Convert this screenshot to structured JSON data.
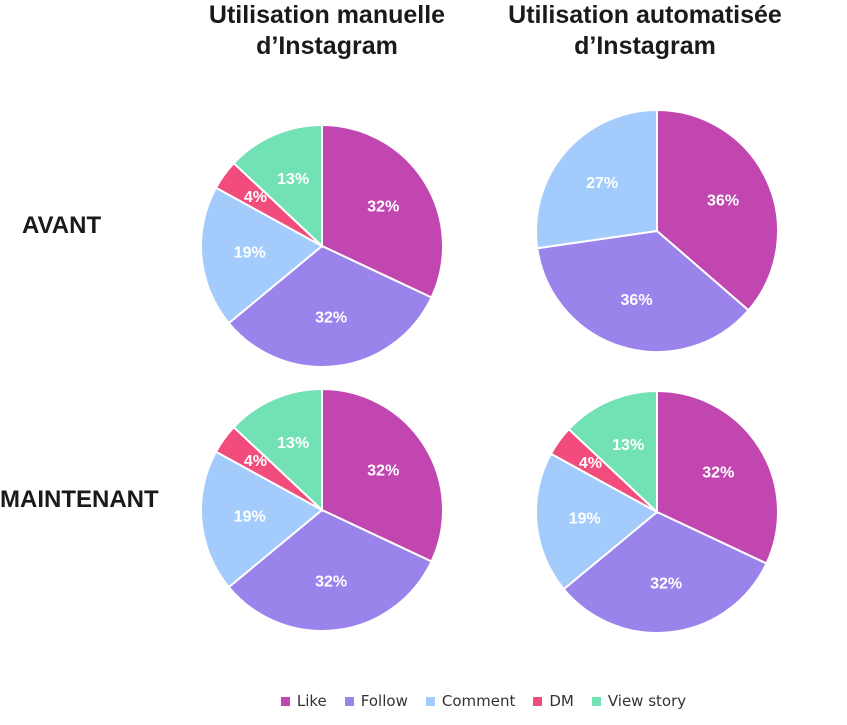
{
  "columns": [
    {
      "title_line1": "Utilisation manuelle",
      "title_line2": "d’Instagram"
    },
    {
      "title_line1": "Utilisation automatisée",
      "title_line2": "d’Instagram"
    }
  ],
  "rows": [
    "AVANT",
    "MAINTENANT"
  ],
  "legend": [
    {
      "label": "Like",
      "color": "#c246b0"
    },
    {
      "label": "Follow",
      "color": "#9b83ec"
    },
    {
      "label": "Comment",
      "color": "#a3ccfd"
    },
    {
      "label": "DM",
      "color": "#f14c7b"
    },
    {
      "label": "View story",
      "color": "#72e1b4"
    }
  ],
  "chart_data": [
    {
      "type": "pie",
      "row": "AVANT",
      "column": "Utilisation manuelle d’Instagram",
      "categories": [
        "Like",
        "Follow",
        "Comment",
        "DM",
        "View story"
      ],
      "values": [
        32,
        32,
        19,
        4,
        13
      ],
      "labels": [
        "32%",
        "32%",
        "19%",
        "4%",
        "13%"
      ]
    },
    {
      "type": "pie",
      "row": "AVANT",
      "column": "Utilisation automatisée d’Instagram",
      "categories": [
        "Like",
        "Follow",
        "Comment"
      ],
      "values": [
        36,
        36,
        27
      ],
      "labels": [
        "36%",
        "36%",
        "27%"
      ]
    },
    {
      "type": "pie",
      "row": "MAINTENANT",
      "column": "Utilisation manuelle d’Instagram",
      "categories": [
        "Like",
        "Follow",
        "Comment",
        "DM",
        "View story"
      ],
      "values": [
        32,
        32,
        19,
        4,
        13
      ],
      "labels": [
        "32%",
        "32%",
        "19%",
        "4%",
        "13%"
      ]
    },
    {
      "type": "pie",
      "row": "MAINTENANT",
      "column": "Utilisation automatisée d’Instagram",
      "categories": [
        "Like",
        "Follow",
        "Comment",
        "DM",
        "View story"
      ],
      "values": [
        32,
        32,
        19,
        4,
        13
      ],
      "labels": [
        "32%",
        "32%",
        "19%",
        "4%",
        "13%"
      ]
    }
  ]
}
